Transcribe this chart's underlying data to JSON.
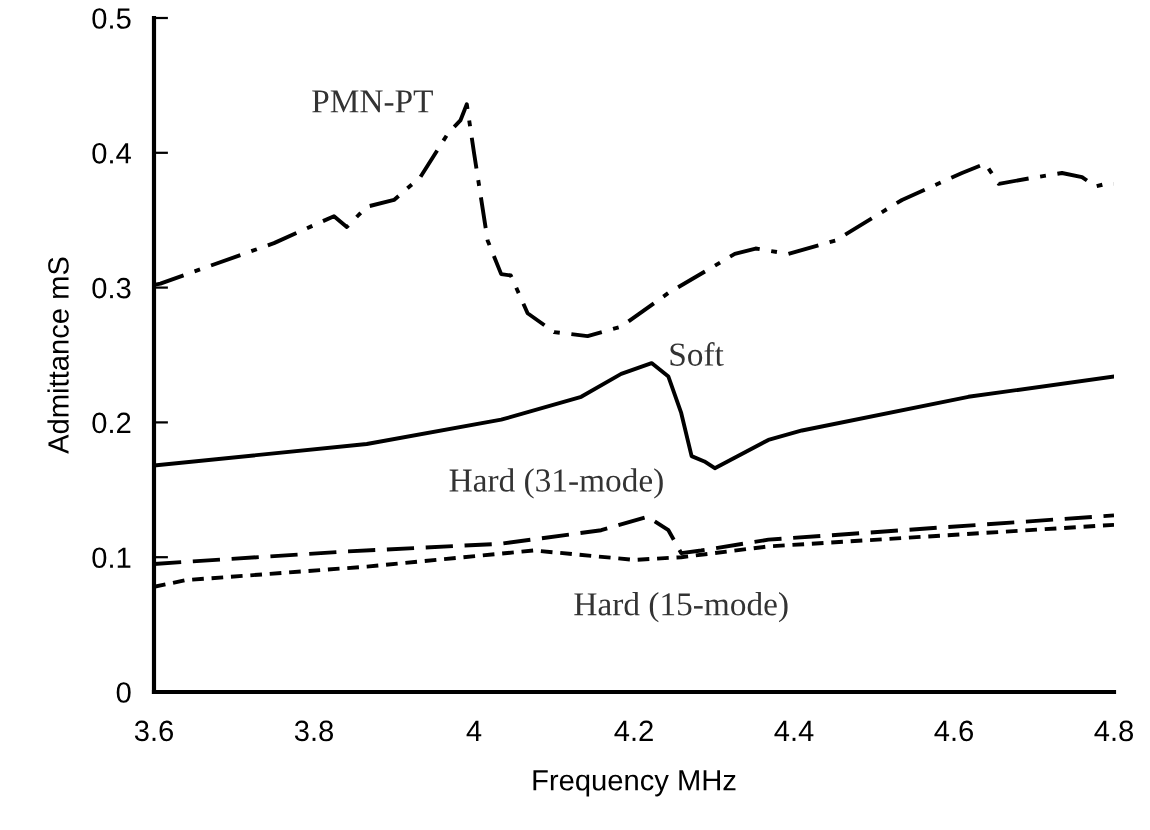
{
  "chart_data": {
    "type": "line",
    "xlabel": "Frequency MHz",
    "ylabel": "Admittance mS",
    "xlim": [
      3.6,
      4.8
    ],
    "ylim": [
      0,
      0.5
    ],
    "xticks": [
      3.6,
      3.8,
      4,
      4.2,
      4.4,
      4.6,
      4.8
    ],
    "yticks": [
      0,
      0.1,
      0.2,
      0.3,
      0.4,
      0.5
    ],
    "grid": false,
    "legend": false,
    "series": [
      {
        "name": "PMN-PT",
        "color": "#000000",
        "line_style": "dashdot",
        "x": [
          3.6,
          3.608,
          3.75,
          3.825,
          3.841,
          3.866,
          3.9,
          3.933,
          3.967,
          3.983,
          3.991,
          4.0,
          4.017,
          4.034,
          4.046,
          4.067,
          4.1,
          4.142,
          4.184,
          4.243,
          4.326,
          4.352,
          4.393,
          4.452,
          4.535,
          4.61,
          4.639,
          4.656,
          4.694,
          4.735,
          4.76,
          4.777,
          4.79,
          4.8
        ],
        "values": [
          0.302,
          0.303,
          0.333,
          0.353,
          0.345,
          0.36,
          0.365,
          0.382,
          0.414,
          0.424,
          0.436,
          0.4,
          0.335,
          0.31,
          0.309,
          0.281,
          0.267,
          0.264,
          0.271,
          0.296,
          0.325,
          0.329,
          0.325,
          0.335,
          0.365,
          0.385,
          0.392,
          0.377,
          0.381,
          0.385,
          0.382,
          0.375,
          0.377,
          0.377
        ]
      },
      {
        "name": "Soft",
        "color": "#000000",
        "line_style": "solid",
        "x": [
          3.6,
          3.866,
          4.034,
          4.134,
          4.184,
          4.222,
          4.243,
          4.259,
          4.272,
          4.288,
          4.301,
          4.368,
          4.41,
          4.618,
          4.8
        ],
        "values": [
          0.168,
          0.184,
          0.202,
          0.219,
          0.236,
          0.244,
          0.234,
          0.207,
          0.175,
          0.171,
          0.166,
          0.187,
          0.194,
          0.219,
          0.234
        ]
      },
      {
        "name": "Hard (31-mode)",
        "color": "#000000",
        "line_style": "dashed",
        "x": [
          3.6,
          3.833,
          4.034,
          4.159,
          4.217,
          4.243,
          4.259,
          4.284,
          4.368,
          4.535,
          4.8
        ],
        "values": [
          0.095,
          0.104,
          0.11,
          0.12,
          0.13,
          0.12,
          0.103,
          0.105,
          0.113,
          0.12,
          0.131
        ]
      },
      {
        "name": "Hard (15-mode)",
        "color": "#000000",
        "line_style": "dotted",
        "x": [
          3.6,
          3.64,
          3.866,
          4.075,
          4.2,
          4.259,
          4.368,
          4.8
        ],
        "values": [
          0.078,
          0.083,
          0.093,
          0.105,
          0.098,
          0.1,
          0.108,
          0.124
        ]
      }
    ]
  }
}
